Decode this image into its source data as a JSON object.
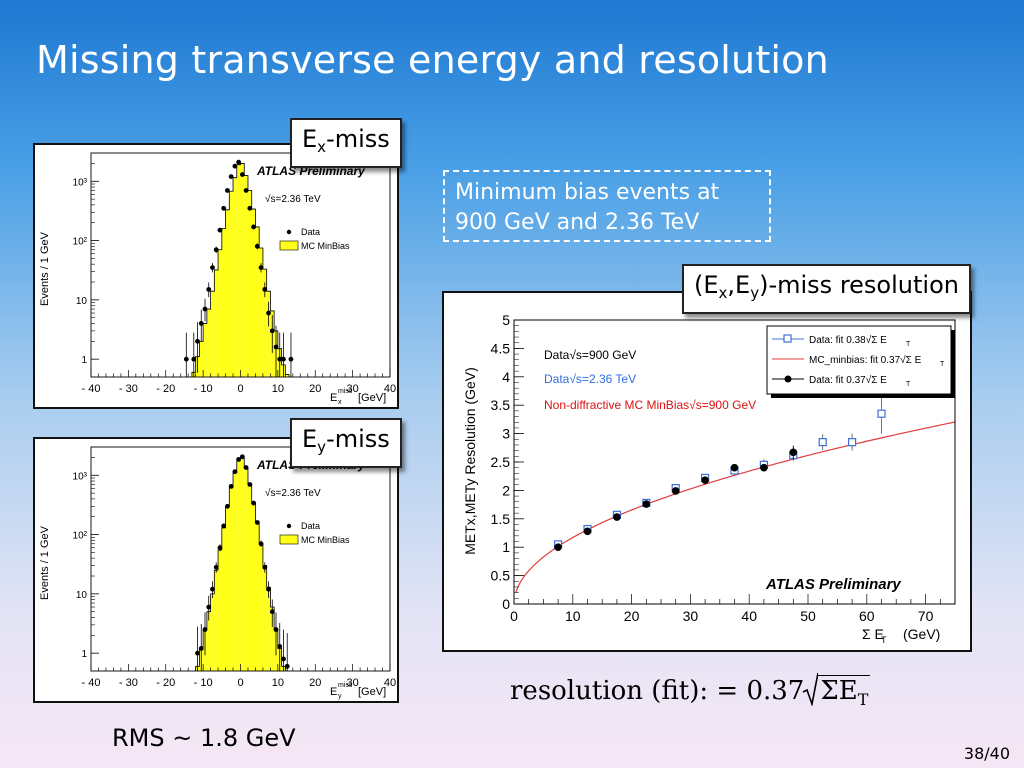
{
  "slide": {
    "title": "Missing transverse energy and resolution",
    "note_line1": "Minimum bias events at",
    "note_line2": "900 GeV and 2.36 TeV",
    "rms_text": "RMS ~ 1.8 GeV",
    "page_number": "38/40",
    "formula": {
      "prefix": "resolution (fit): = 0.37",
      "radicand": "ΣE",
      "radicand_sub": "T"
    }
  },
  "labels": {
    "ex": {
      "main": "E",
      "sub": "x",
      "suffix": "-miss"
    },
    "ey": {
      "main": "E",
      "sub": "y",
      "suffix": "-miss"
    },
    "res": {
      "text_a": "(E",
      "sub1": "x",
      "text_b": ",E",
      "sub2": "y",
      "text_c": ")-miss resolution"
    }
  },
  "colors": {
    "mc_fill": "#ffff1a",
    "data_black": "#000000",
    "data_blue": "#3f6fd8",
    "mc_red": "#e23c3c",
    "blue_text": "#2f6fe0",
    "red_text": "#dd1111"
  },
  "chart_data": [
    {
      "type": "bar",
      "id": "ex_hist",
      "ylabel": "Events / 1 GeV",
      "xlabel_main": "E",
      "xlabel_sup": "miss",
      "xlabel_sub": "x",
      "xlabel_unit": "[GeV]",
      "log_y": true,
      "xlim": [
        -40,
        40
      ],
      "ylim": [
        0.5,
        3000
      ],
      "x_ticks": [
        -40,
        -30,
        -20,
        -10,
        0,
        10,
        20,
        30,
        40
      ],
      "x_tick_labels": [
        "- 40",
        "- 30",
        "- 20",
        "- 10",
        "0",
        "10",
        "20",
        "30",
        "40"
      ],
      "y_ticks": [
        1,
        10,
        100,
        1000
      ],
      "y_tick_labels": [
        "1",
        "10",
        "10²",
        "10³"
      ],
      "atlas": "ATLAS Preliminary",
      "energy": "√s=2.36 TeV",
      "legend": [
        "Data",
        "MC MinBias"
      ],
      "legend_position": "top-right",
      "series": [
        {
          "name": "MC MinBias",
          "bin_low": [
            -13,
            -12,
            -11,
            -10,
            -9,
            -8,
            -7,
            -6,
            -5,
            -4,
            -3,
            -2,
            -1,
            0,
            1,
            2,
            3,
            4,
            5,
            6,
            7,
            8,
            9,
            10,
            11,
            12
          ],
          "values": [
            0.6,
            1.1,
            2,
            4,
            7,
            14,
            32,
            70,
            160,
            330,
            680,
            1150,
            1900,
            2000,
            1250,
            700,
            340,
            170,
            75,
            33,
            14,
            6.5,
            3,
            1.5,
            0.8,
            0.55
          ]
        },
        {
          "name": "Data",
          "x": [
            -14.5,
            -12.5,
            -11.5,
            -10.5,
            -9.5,
            -8.5,
            -7.5,
            -6.5,
            -5.5,
            -4.5,
            -3.5,
            -2.5,
            -1.5,
            -0.5,
            0.5,
            1.5,
            2.5,
            3.5,
            4.5,
            5.5,
            6.5,
            7.5,
            8.5,
            9.5,
            10.5,
            11.5,
            13.5
          ],
          "y": [
            1,
            1,
            2,
            4,
            7,
            15,
            35,
            70,
            150,
            350,
            700,
            1200,
            1800,
            2100,
            1300,
            700,
            350,
            170,
            80,
            35,
            15,
            6,
            3,
            1.6,
            1,
            1,
            1
          ]
        }
      ]
    },
    {
      "type": "bar",
      "id": "ey_hist",
      "ylabel": "Events / 1 GeV",
      "xlabel_main": "E",
      "xlabel_sup": "miss",
      "xlabel_sub": "y",
      "xlabel_unit": "[GeV]",
      "log_y": true,
      "xlim": [
        -40,
        40
      ],
      "ylim": [
        0.5,
        3000
      ],
      "x_ticks": [
        -40,
        -30,
        -20,
        -10,
        0,
        10,
        20,
        30,
        40
      ],
      "x_tick_labels": [
        "- 40",
        "- 30",
        "- 20",
        "- 10",
        "0",
        "10",
        "20",
        "30",
        "40"
      ],
      "y_ticks": [
        1,
        10,
        100,
        1000
      ],
      "y_tick_labels": [
        "1",
        "10",
        "10²",
        "10³"
      ],
      "atlas": "ATLAS Preliminary",
      "energy": "√s=2.36 TeV",
      "legend": [
        "Data",
        "MC MinBias"
      ],
      "legend_position": "top-right",
      "series": [
        {
          "name": "MC MinBias",
          "bin_low": [
            -12,
            -11,
            -10,
            -9,
            -8,
            -7,
            -6,
            -5,
            -4,
            -3,
            -2,
            -1,
            0,
            1,
            2,
            3,
            4,
            5,
            6,
            7,
            8,
            9,
            10,
            11
          ],
          "values": [
            0.6,
            1.2,
            2.5,
            5,
            10,
            25,
            55,
            130,
            290,
            620,
            1100,
            1800,
            2000,
            1300,
            720,
            350,
            165,
            70,
            30,
            13,
            6,
            2.5,
            1.2,
            0.6
          ]
        },
        {
          "name": "Data",
          "x": [
            -11.5,
            -10.5,
            -9.5,
            -8.5,
            -7.5,
            -6.5,
            -5.5,
            -4.5,
            -3.5,
            -2.5,
            -1.5,
            -0.5,
            0.5,
            1.5,
            2.5,
            3.5,
            4.5,
            5.5,
            6.5,
            7.5,
            8.5,
            9.5,
            10.5,
            11.5,
            12.5
          ],
          "y": [
            1,
            1.2,
            2.5,
            6,
            12,
            28,
            60,
            140,
            300,
            650,
            1150,
            1850,
            2050,
            1350,
            700,
            340,
            160,
            70,
            28,
            12,
            5,
            2.5,
            1.3,
            0.8,
            0.6
          ]
        }
      ]
    },
    {
      "type": "scatter",
      "id": "resolution",
      "ylabel": "METx,METy Resolution (GeV)",
      "xlabel": "Σ E",
      "xlabel_sub": "T",
      "xlabel_unit": "(GeV)",
      "xlim": [
        0,
        75
      ],
      "ylim": [
        0,
        5
      ],
      "x_ticks": [
        0,
        10,
        20,
        30,
        40,
        50,
        60,
        70
      ],
      "y_ticks": [
        0,
        0.5,
        1,
        1.5,
        2,
        2.5,
        3,
        3.5,
        4,
        4.5,
        5
      ],
      "y_tick_labels": [
        "0",
        "0.5",
        "1",
        "1.5",
        "2",
        "2.5",
        "3",
        "3.5",
        "4",
        "4.5",
        "5"
      ],
      "atlas": "ATLAS Preliminary",
      "annotations": [
        "Data√s=900 GeV",
        "Data√s=2.36 TeV",
        "Non-diffractive MC MinBias√s=900 GeV"
      ],
      "legend_position": "top-right",
      "legend": [
        {
          "text": "Data: fit 0.38√Σ E",
          "sub": "T"
        },
        {
          "text": "MC_minbias: fit 0.37√Σ E",
          "sub": "T"
        },
        {
          "text": "Data: fit 0.37√Σ E",
          "sub": "T"
        }
      ],
      "series": [
        {
          "name": "Data: fit 0.38√Σ E_T",
          "x": [
            7.5,
            12.5,
            17.5,
            22.5,
            27.5,
            32.5,
            37.5,
            42.5,
            47.5,
            52.5,
            57.5,
            62.5
          ],
          "y": [
            1.05,
            1.32,
            1.57,
            1.78,
            2.04,
            2.22,
            2.35,
            2.45,
            2.62,
            2.85,
            2.85,
            3.35
          ],
          "err": [
            0.03,
            0.03,
            0.03,
            0.04,
            0.05,
            0.06,
            0.07,
            0.1,
            0.1,
            0.14,
            0.15,
            0.35
          ]
        },
        {
          "name": "MC_minbias: fit 0.37√Σ E_T",
          "fit_coefficient": 0.37,
          "x_range": [
            0.3,
            75
          ]
        },
        {
          "name": "Data: fit 0.37√Σ E_T",
          "x": [
            7.5,
            12.5,
            17.5,
            22.5,
            27.5,
            32.5,
            37.5,
            42.5,
            47.5
          ],
          "y": [
            1.0,
            1.28,
            1.53,
            1.76,
            1.99,
            2.18,
            2.4,
            2.4,
            2.67
          ],
          "err": [
            0.02,
            0.02,
            0.02,
            0.03,
            0.03,
            0.04,
            0.05,
            0.06,
            0.12
          ]
        }
      ]
    }
  ]
}
